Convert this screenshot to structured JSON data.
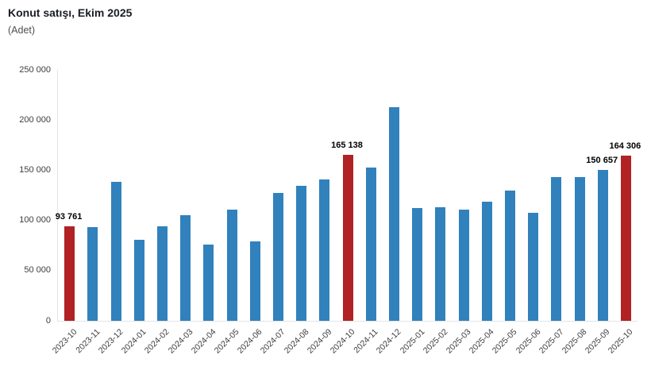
{
  "header": {
    "title": "Konut satışı, Ekim 2025",
    "subtitle": "(Adet)"
  },
  "chart_data": {
    "type": "bar",
    "title": "Konut satışı, Ekim 2025",
    "unit_label": "(Adet)",
    "xlabel": "",
    "ylabel": "Adet",
    "ylim": [
      0,
      250000
    ],
    "ytick_values": [
      0,
      50000,
      100000,
      150000,
      200000,
      250000
    ],
    "ytick_labels": [
      "0",
      "50 000",
      "100 000",
      "150 000",
      "200 000",
      "250 000"
    ],
    "grid": false,
    "legend_position": "none",
    "categories": [
      "2023-10",
      "2023-11",
      "2023-12",
      "2024-01",
      "2024-02",
      "2024-03",
      "2024-04",
      "2024-05",
      "2024-06",
      "2024-07",
      "2024-08",
      "2024-09",
      "2024-10",
      "2024-11",
      "2024-12",
      "2025-01",
      "2025-02",
      "2025-03",
      "2025-04",
      "2025-05",
      "2025-06",
      "2025-07",
      "2025-08",
      "2025-09",
      "2025-10"
    ],
    "values": [
      93761,
      93514,
      138577,
      80308,
      93902,
      105476,
      75569,
      110588,
      79313,
      127088,
      134155,
      140919,
      165138,
      153014,
      212637,
      112173,
      112818,
      110795,
      118359,
      130025,
      107723,
      142858,
      143319,
      150657,
      164306
    ],
    "highlight_indices": [
      0,
      12,
      24
    ],
    "colors": {
      "bar_default": "#3181bd",
      "bar_highlight": "#b02224"
    },
    "data_labels": [
      {
        "index": 0,
        "text": "93 761"
      },
      {
        "index": 12,
        "text": "165 138"
      },
      {
        "index": 23,
        "text": "150 657"
      },
      {
        "index": 24,
        "text": "164 306"
      }
    ]
  }
}
